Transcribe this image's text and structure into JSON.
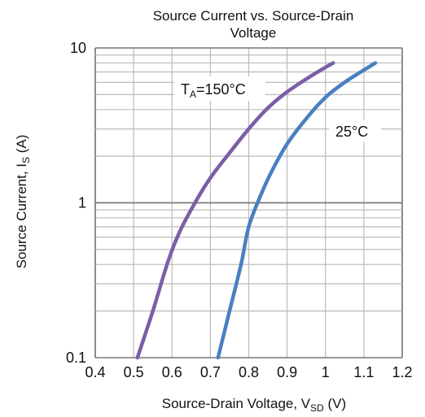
{
  "chart_data": {
    "type": "line",
    "title": "Source Current vs. Source-Drain Voltage",
    "xlabel": "Source-Drain Voltage, V",
    "xlabel_sub": "SD",
    "xlabel_unit": " (V)",
    "ylabel": "Source Current, I",
    "ylabel_sub": "S",
    "ylabel_unit": " (A)",
    "xlim": [
      0.4,
      1.2
    ],
    "ylim": [
      0.1,
      10
    ],
    "yscale": "log",
    "grid": true,
    "xticks": [
      "0.4",
      "0.5",
      "0.6",
      "0.7",
      "0.8",
      "0.9",
      "1",
      "1.1",
      "1.2"
    ],
    "yticks": [
      "0.1",
      "1",
      "10"
    ],
    "series": [
      {
        "name": "TA=150°C",
        "label_main": "T",
        "label_sub": "A",
        "label_rest": "=150°C",
        "color": "#7b5ea7",
        "x": [
          0.51,
          0.55,
          0.59,
          0.62,
          0.66,
          0.7,
          0.75,
          0.8,
          0.85,
          0.9,
          0.95,
          1.0,
          1.02
        ],
        "y": [
          0.1,
          0.2,
          0.42,
          0.65,
          1.0,
          1.45,
          2.1,
          3.0,
          4.1,
          5.2,
          6.3,
          7.5,
          8.0
        ]
      },
      {
        "name": "25°C",
        "label_main": "25°C",
        "color": "#4a7fc1",
        "x": [
          0.72,
          0.75,
          0.78,
          0.8,
          0.83,
          0.86,
          0.9,
          0.95,
          1.0,
          1.05,
          1.1,
          1.13
        ],
        "y": [
          0.1,
          0.2,
          0.4,
          0.7,
          1.1,
          1.6,
          2.4,
          3.5,
          4.8,
          6.0,
          7.2,
          8.0
        ]
      }
    ]
  }
}
